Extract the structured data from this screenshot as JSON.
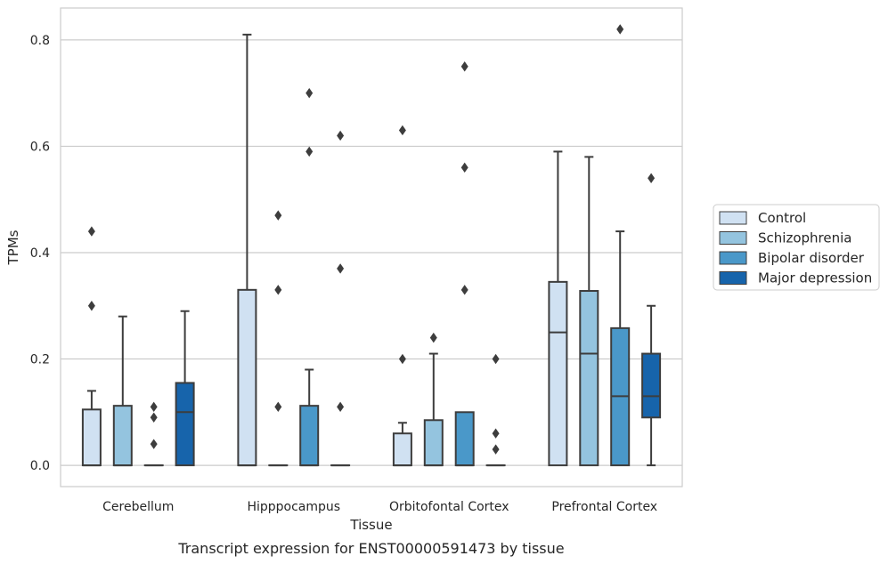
{
  "chart_data": {
    "type": "box",
    "xlabel": "Tissue",
    "ylabel": "TPMs",
    "caption": "Transcript expression for ENST00000591473 by tissue",
    "ylim": [
      -0.04,
      0.86
    ],
    "yticks": [
      0.0,
      0.2,
      0.4,
      0.6,
      0.8
    ],
    "ytick_labels": [
      "0.0",
      "0.2",
      "0.4",
      "0.6",
      "0.8"
    ],
    "grid": "horizontal",
    "legend_position": "right",
    "categories": [
      "Cerebellum",
      "Hipppocampus",
      "Orbitofontal Cortex",
      "Prefrontal Cortex"
    ],
    "series": [
      {
        "name": "Control",
        "color": "#d0e1f2",
        "boxes": [
          {
            "whislo": 0.0,
            "q1": 0.0,
            "med": 0.0,
            "q3": 0.105,
            "whishi": 0.14,
            "fliers": [
              0.3,
              0.44
            ]
          },
          {
            "whislo": 0.0,
            "q1": 0.0,
            "med": 0.0,
            "q3": 0.33,
            "whishi": 0.81,
            "fliers": []
          },
          {
            "whislo": 0.0,
            "q1": 0.0,
            "med": 0.0,
            "q3": 0.06,
            "whishi": 0.08,
            "fliers": [
              0.2,
              0.63
            ]
          },
          {
            "whislo": 0.0,
            "q1": 0.0,
            "med": 0.25,
            "q3": 0.345,
            "whishi": 0.59,
            "fliers": []
          }
        ]
      },
      {
        "name": "Schizophrenia",
        "color": "#94c4df",
        "boxes": [
          {
            "whislo": 0.0,
            "q1": 0.0,
            "med": 0.0,
            "q3": 0.112,
            "whishi": 0.28,
            "fliers": []
          },
          {
            "whislo": 0.0,
            "q1": 0.0,
            "med": 0.0,
            "q3": 0.0,
            "whishi": 0.0,
            "fliers": [
              0.11,
              0.33,
              0.47
            ]
          },
          {
            "whislo": 0.0,
            "q1": 0.0,
            "med": 0.0,
            "q3": 0.085,
            "whishi": 0.21,
            "fliers": [
              0.24
            ]
          },
          {
            "whislo": 0.0,
            "q1": 0.0,
            "med": 0.21,
            "q3": 0.328,
            "whishi": 0.58,
            "fliers": []
          }
        ]
      },
      {
        "name": "Bipolar disorder",
        "color": "#4a98c9",
        "boxes": [
          {
            "whislo": 0.0,
            "q1": 0.0,
            "med": 0.0,
            "q3": 0.0,
            "whishi": 0.0,
            "fliers": [
              0.04,
              0.09,
              0.11
            ]
          },
          {
            "whislo": 0.0,
            "q1": 0.0,
            "med": 0.0,
            "q3": 0.112,
            "whishi": 0.18,
            "fliers": [
              0.59,
              0.7
            ]
          },
          {
            "whislo": 0.0,
            "q1": 0.0,
            "med": 0.0,
            "q3": 0.1,
            "whishi": 0.1,
            "fliers": [
              0.33,
              0.56,
              0.75
            ]
          },
          {
            "whislo": 0.0,
            "q1": 0.0,
            "med": 0.13,
            "q3": 0.258,
            "whishi": 0.44,
            "fliers": [
              0.82
            ]
          }
        ]
      },
      {
        "name": "Major depression",
        "color": "#1764ab",
        "boxes": [
          {
            "whislo": 0.0,
            "q1": 0.0,
            "med": 0.1,
            "q3": 0.155,
            "whishi": 0.29,
            "fliers": []
          },
          {
            "whislo": 0.0,
            "q1": 0.0,
            "med": 0.0,
            "q3": 0.0,
            "whishi": 0.0,
            "fliers": [
              0.11,
              0.37,
              0.62
            ]
          },
          {
            "whislo": 0.0,
            "q1": 0.0,
            "med": 0.0,
            "q3": 0.0,
            "whishi": 0.0,
            "fliers": [
              0.03,
              0.06,
              0.2
            ]
          },
          {
            "whislo": 0.0,
            "q1": 0.09,
            "med": 0.13,
            "q3": 0.21,
            "whishi": 0.3,
            "fliers": [
              0.54
            ]
          }
        ]
      }
    ]
  }
}
